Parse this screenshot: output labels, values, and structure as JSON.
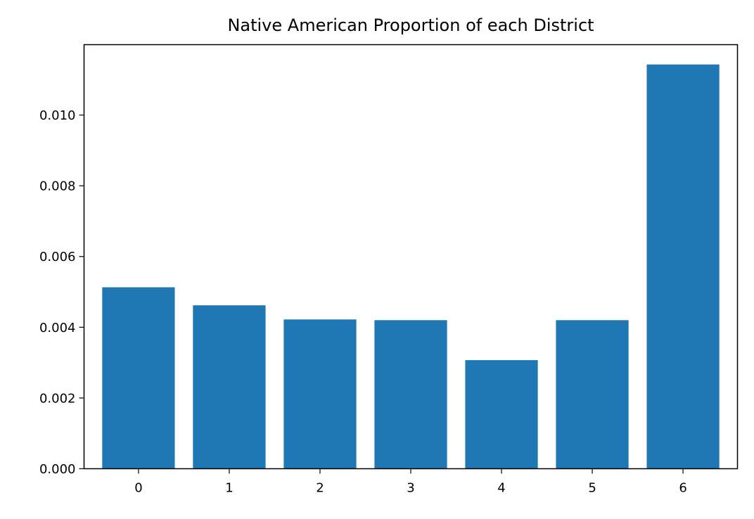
{
  "chart_data": {
    "type": "bar",
    "title": "Native American Proportion of each District",
    "xlabel": "",
    "ylabel": "",
    "categories": [
      "0",
      "1",
      "2",
      "3",
      "4",
      "5",
      "6"
    ],
    "values": [
      0.00513,
      0.00462,
      0.00422,
      0.0042,
      0.00307,
      0.0042,
      0.01143
    ],
    "ylim": [
      0,
      0.01199
    ],
    "yticks": [
      0,
      0.002,
      0.004,
      0.006,
      0.008,
      0.01
    ],
    "ytick_labels": [
      "0.000",
      "0.002",
      "0.004",
      "0.006",
      "0.008",
      "0.010"
    ],
    "bar_color": "#1f77b4",
    "grid": false,
    "legend": "none"
  }
}
